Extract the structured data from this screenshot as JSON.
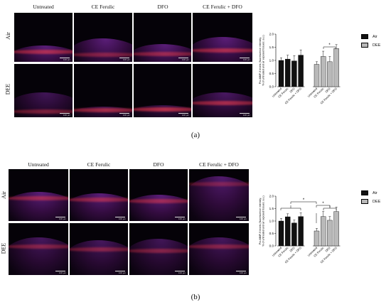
{
  "panels": [
    {
      "label": "(a)",
      "columns": [
        "Untreated",
        "CE Ferulic",
        "DFO",
        "CE Ferulic + DFO"
      ],
      "rows": [
        "Air",
        "DEE"
      ],
      "scale_text": "100 μm",
      "chart_data": {
        "type": "bar",
        "ylabel": "Pro-MMP-9 levels (fluorescence intensity;\n% of untreated and air exposed tissues; a.u.)",
        "ylim": [
          0,
          2.0
        ],
        "yticks": [
          "0.0",
          "0.5",
          "1.0",
          "1.5",
          "2.0"
        ],
        "groups": [
          {
            "name": "Air",
            "categories": [
              "Untreated",
              "CE Ferulic",
              "DFO",
              "CE Ferulic + DFO"
            ],
            "values": [
              1.0,
              1.05,
              0.98,
              1.2
            ],
            "errors": [
              0.1,
              0.15,
              0.2,
              0.2
            ]
          },
          {
            "name": "DEE",
            "categories": [
              "Untreated",
              "CE Ferulic",
              "DFO",
              "CE Ferulic + DFO"
            ],
            "values": [
              0.85,
              1.15,
              0.95,
              1.45
            ],
            "errors": [
              0.1,
              0.2,
              0.2,
              0.15
            ]
          }
        ],
        "legend": [
          {
            "name": "Air",
            "color": "#111111"
          },
          {
            "name": "DEE",
            "color": "#b9b9b9"
          }
        ],
        "annotations": [
          "*"
        ]
      }
    },
    {
      "label": "(b)",
      "columns": [
        "Untreated",
        "CE Ferulic",
        "DFO",
        "CE Ferulic + DFO"
      ],
      "rows": [
        "Air",
        "DEE"
      ],
      "scale_text": "100 μm",
      "chart_data": {
        "type": "bar",
        "ylabel": "Pro-MMP-9 levels (fluorescence intensity;\n% of untreated and air exposed tissues; a.u.)",
        "ylim": [
          0,
          2.0
        ],
        "yticks": [
          "0.0",
          "0.5",
          "1.0",
          "1.5",
          "2.0"
        ],
        "groups": [
          {
            "name": "Air",
            "categories": [
              "Untreated",
              "CE Ferulic",
              "DFO",
              "CE Ferulic + DFO"
            ],
            "values": [
              1.0,
              1.17,
              0.92,
              1.18
            ],
            "errors": [
              0.1,
              0.12,
              0.12,
              0.15
            ]
          },
          {
            "name": "DEE",
            "categories": [
              "Untreated",
              "CE Ferulic",
              "DFO",
              "CE Ferulic + DFO"
            ],
            "values": [
              0.6,
              1.18,
              1.03,
              1.38
            ],
            "errors": [
              0.1,
              0.2,
              0.15,
              0.18
            ]
          }
        ],
        "legend": [
          {
            "name": "Air",
            "color": "#111111"
          },
          {
            "name": "DEE",
            "color": "#b9b9b9"
          }
        ],
        "annotations": [
          "*",
          "*"
        ]
      }
    }
  ]
}
